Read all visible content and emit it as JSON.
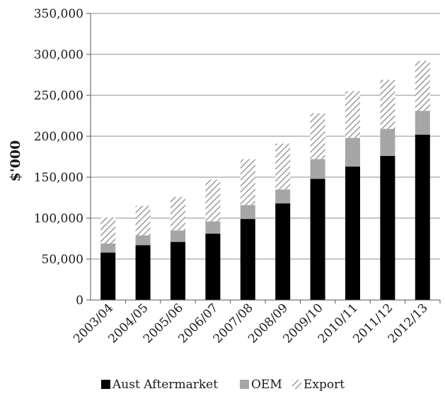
{
  "chart_data": {
    "type": "bar",
    "stacked": true,
    "title": "",
    "xlabel": "",
    "ylabel": "$'000",
    "ylim": [
      0,
      350000
    ],
    "yticks": [
      0,
      50000,
      100000,
      150000,
      200000,
      250000,
      300000,
      350000
    ],
    "ytick_labels": [
      "0",
      "50,000",
      "100,000",
      "150,000",
      "200,000",
      "250,000",
      "300,000",
      "350,000"
    ],
    "grid": true,
    "legend_position": "bottom",
    "categories": [
      "2003/04",
      "2004/05",
      "2005/06",
      "2006/07",
      "2007/08",
      "2008/09",
      "2009/10",
      "2010/11",
      "2011/12",
      "2012/13"
    ],
    "series": [
      {
        "name": "Aust Aftermarket",
        "color": "#000000",
        "pattern": "solid",
        "values": [
          58000,
          67000,
          71000,
          81000,
          99000,
          118000,
          148000,
          163000,
          176000,
          202000
        ]
      },
      {
        "name": "OEM",
        "color": "#a6a6a6",
        "pattern": "solid",
        "values": [
          11000,
          12000,
          14000,
          15000,
          17000,
          17000,
          24000,
          35000,
          33000,
          29000
        ]
      },
      {
        "name": "Export",
        "color": "#bfbfbf",
        "pattern": "diagonal-hatch",
        "values": [
          32000,
          36000,
          41000,
          51000,
          56000,
          56000,
          56000,
          57000,
          60000,
          61000
        ]
      }
    ]
  }
}
